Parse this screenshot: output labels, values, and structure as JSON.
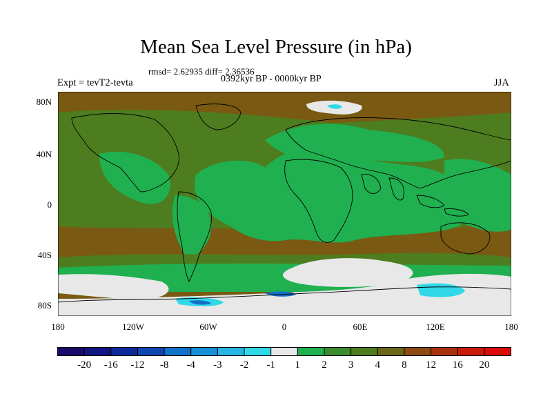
{
  "title": "Mean Sea Level Pressure (in hPa)",
  "stats": "rmsd= 2.62935 diff= 2.36536",
  "period": "0392kyr BP - 0000kyr BP",
  "experiment": "Expt = tevT2-tevta",
  "season": "JJA",
  "lat_labels": [
    "80N",
    "40N",
    "0",
    "40S",
    "80S"
  ],
  "lon_labels": [
    "180",
    "120W",
    "60W",
    "0",
    "60E",
    "120E",
    "180"
  ],
  "colorbar": {
    "labels": [
      "-20",
      "-16",
      "-12",
      "-8",
      "-4",
      "-3",
      "-2",
      "-1",
      "1",
      "2",
      "3",
      "4",
      "8",
      "12",
      "16",
      "20"
    ],
    "colors": [
      "#1a0a6b",
      "#131580",
      "#0e2a98",
      "#1046b0",
      "#1170c8",
      "#1590d6",
      "#2ab4e4",
      "#30d8e8",
      "#e8e8e8",
      "#20b050",
      "#3a8c2c",
      "#4d7d1f",
      "#6b6516",
      "#8c4a10",
      "#a8300c",
      "#c81c0a",
      "#d80a0a"
    ]
  },
  "colors": {
    "brown": "#7a5a12",
    "dark_green": "#4d7d1f",
    "mid_green": "#3a8c2c",
    "green": "#20b050",
    "white": "#e8e8e8",
    "cyan": "#30d8e8",
    "blue": "#1170c8"
  }
}
